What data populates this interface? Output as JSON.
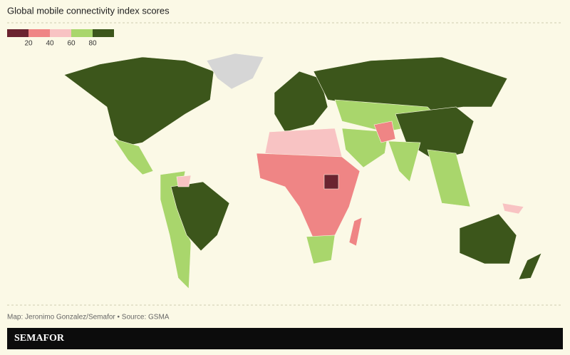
{
  "title": "Global mobile connectivity index scores",
  "legend": {
    "colors": [
      "#6b2430",
      "#ef8585",
      "#f8c3c3",
      "#a9d66c",
      "#3c561b"
    ],
    "ticks": [
      20,
      40,
      60,
      80
    ]
  },
  "source": "Map: Jeronimo Gonzalez/Semafor • Source: GSMA",
  "brand": "SEMAFOR"
}
